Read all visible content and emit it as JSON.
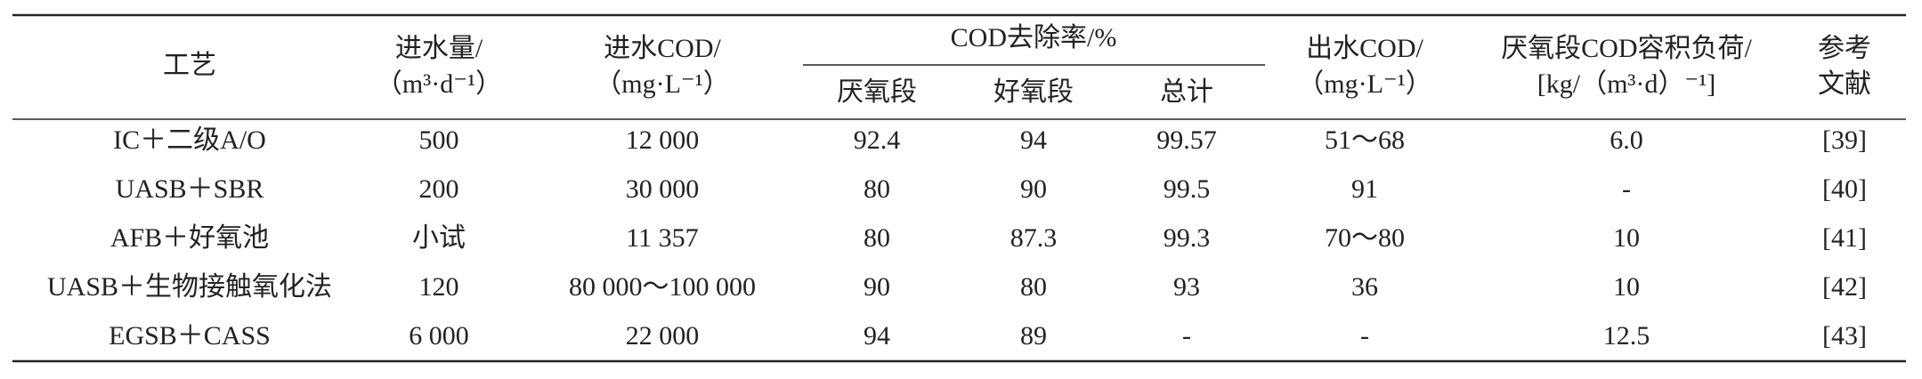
{
  "header": {
    "columns": [
      [
        "工艺"
      ],
      [
        "进水量/",
        "（m³·d⁻¹）"
      ],
      [
        "进水COD/",
        "（mg·L⁻¹）"
      ],
      [
        "出水COD/",
        "（mg·L⁻¹）"
      ],
      [
        "厌氧段COD容积负荷/",
        "[kg/（m³·d）⁻¹]"
      ],
      [
        "参考",
        "文献"
      ]
    ],
    "group": {
      "label": "COD去除率/%",
      "sub": [
        "厌氧段",
        "好氧段",
        "总计"
      ]
    }
  },
  "table": {
    "rows": [
      [
        "IC＋二级A/O",
        "500",
        "12 000",
        "92.4",
        "94",
        "99.57",
        "51～68",
        "6.0",
        "[39]"
      ],
      [
        "UASB＋SBR",
        "200",
        "30 000",
        "80",
        "90",
        "99.5",
        "91",
        "-",
        "[40]"
      ],
      [
        "AFB＋好氧池",
        "小试",
        "11 357",
        "80",
        "87.3",
        "99.3",
        "70～80",
        "10",
        "[41]"
      ],
      [
        "UASB＋生物接触氧化法",
        "120",
        "80 000～100 000",
        "90",
        "80",
        "93",
        "36",
        "10",
        "[42]"
      ],
      [
        "EGSB＋CASS",
        "6 000",
        "22 000",
        "94",
        "89",
        "-",
        "-",
        "12.5",
        "[43]"
      ]
    ]
  }
}
